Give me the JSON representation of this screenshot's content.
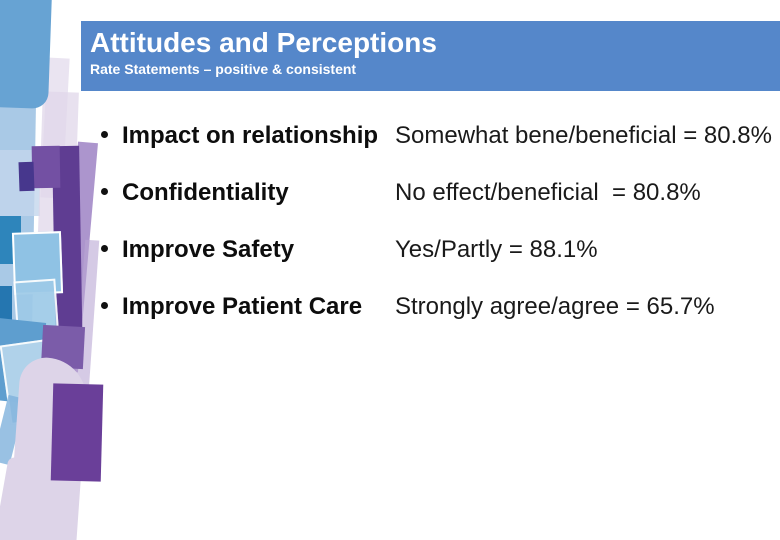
{
  "slide": {
    "header": {
      "title": "Attitudes and Perceptions",
      "subtitle": "Rate Statements – positive & consistent",
      "bar_color": "#5587ca",
      "text_color": "#ffffff"
    },
    "bullets": [
      {
        "label": "Impact on relationship",
        "value": "Somewhat bene/beneficial = 80.8%"
      },
      {
        "label": "Confidentiality",
        "value": "No effect/beneficial  = 80.8%"
      },
      {
        "label": "Improve Safety",
        "value": "Yes/Partly = 88.1%"
      },
      {
        "label": "Improve Patient Care",
        "value": "Strongly agree/agree = 65.7%"
      }
    ],
    "body_text_color": "#1a1a1a",
    "decor_colors": {
      "blue_top": "#67a3d3",
      "light_blue": "#a9c9e6",
      "teal": "#2e85bb",
      "deep_blue": "#2576b0",
      "bordered_blue": "#8fc2e4",
      "pale_pink": "#eae4f1",
      "lavender": "#ddd4e8",
      "purple_light": "#9d82c4",
      "purple_mid": "#7350a3",
      "purple_column": "#5f3d92",
      "purple_big": "#6a3f99",
      "indigo": "#47378d"
    }
  }
}
